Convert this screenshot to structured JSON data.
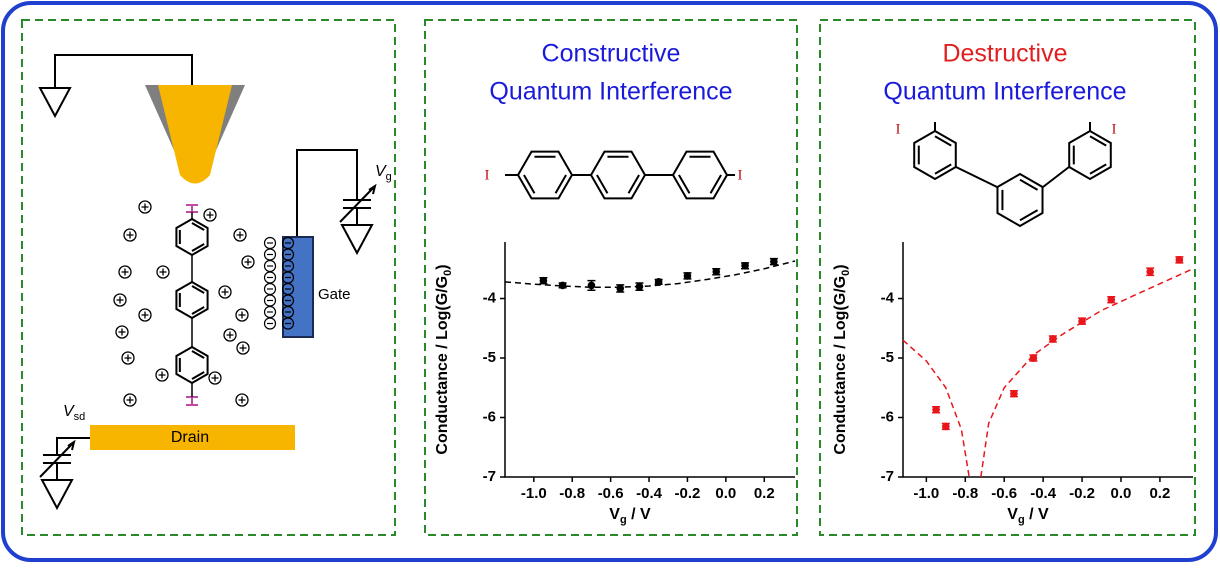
{
  "diagram": {
    "gate": "Gate",
    "drain": "Drain",
    "vsd": [
      "V",
      "sd"
    ],
    "vg": [
      "V",
      "g"
    ]
  },
  "chart_data": [
    {
      "type": "scatter",
      "title": [
        "Constructive",
        "Quantum Interference"
      ],
      "title_colors": [
        "#1a1adb",
        "#1a1adb"
      ],
      "molecule_labels": [
        "I",
        "I"
      ],
      "y_label": [
        "Conductance / Log(G/G",
        "0",
        ")"
      ],
      "x_label": [
        "V",
        "g",
        " / V"
      ],
      "color": "#000000",
      "x": [
        -0.95,
        -0.85,
        -0.7,
        -0.55,
        -0.45,
        -0.35,
        -0.2,
        -0.05,
        0.1,
        0.25
      ],
      "values": [
        -3.7,
        -3.78,
        -3.78,
        -3.83,
        -3.8,
        -3.72,
        -3.62,
        -3.55,
        -3.45,
        -3.38
      ],
      "errors": [
        0.05,
        0.04,
        0.08,
        0.06,
        0.06,
        0.04,
        0.05,
        0.05,
        0.05,
        0.05
      ],
      "fit": {
        "x": [
          -1.15,
          -1.0,
          -0.85,
          -0.7,
          -0.55,
          -0.4,
          -0.25,
          -0.1,
          0.05,
          0.2,
          0.36
        ],
        "values": [
          -3.72,
          -3.76,
          -3.79,
          -3.81,
          -3.81,
          -3.79,
          -3.75,
          -3.68,
          -3.6,
          -3.5,
          -3.37
        ]
      },
      "xlim": [
        -1.15,
        0.36
      ],
      "ylim": [
        -7,
        -3.05
      ],
      "xticks": [
        {
          "value": -1,
          "label": "-1.0"
        },
        -0.8,
        -0.6,
        -0.4,
        -0.2,
        {
          "value": 0,
          "label": "0.0"
        },
        0.2
      ],
      "yticks": [
        -4,
        -5,
        -6,
        -7
      ]
    },
    {
      "type": "scatter",
      "title": [
        "Destructive",
        "Quantum Interference"
      ],
      "title_colors": [
        "#e02020",
        "#1a1adb"
      ],
      "molecule_labels": [
        "I",
        "I"
      ],
      "y_label": [
        "Conductance / Log(G/G",
        "0",
        ")"
      ],
      "x_label": [
        "V",
        "g",
        " / V"
      ],
      "color": "#e8161b",
      "x": [
        -0.95,
        -0.9,
        -0.55,
        -0.45,
        -0.35,
        -0.2,
        -0.05,
        0.15,
        0.3
      ],
      "values": [
        -5.87,
        -6.15,
        -5.6,
        -5.0,
        -4.68,
        -4.38,
        -4.02,
        -3.55,
        -3.35
      ],
      "errors": [
        0.05,
        0.05,
        0.05,
        0.05,
        0.05,
        0.05,
        0.05,
        0.06,
        0.05
      ],
      "fit": {
        "x": [
          -1.12,
          -1.0,
          -0.9,
          -0.82,
          -0.78,
          null,
          -0.72,
          -0.68,
          -0.6,
          -0.45,
          -0.3,
          -0.1,
          0.1,
          0.37
        ],
        "values": [
          -4.7,
          -5.05,
          -5.5,
          -6.2,
          -7.0,
          null,
          -7.0,
          -6.1,
          -5.5,
          -4.95,
          -4.6,
          -4.2,
          -3.9,
          -3.5
        ]
      },
      "xlim": [
        -1.12,
        0.37
      ],
      "ylim": [
        -7,
        -3.05
      ],
      "xticks": [
        {
          "value": -1,
          "label": "-1.0"
        },
        -0.8,
        -0.6,
        -0.4,
        -0.2,
        {
          "value": 0,
          "label": "0.0"
        },
        0.2
      ],
      "yticks": [
        -4,
        -5,
        -6,
        -7
      ]
    }
  ]
}
